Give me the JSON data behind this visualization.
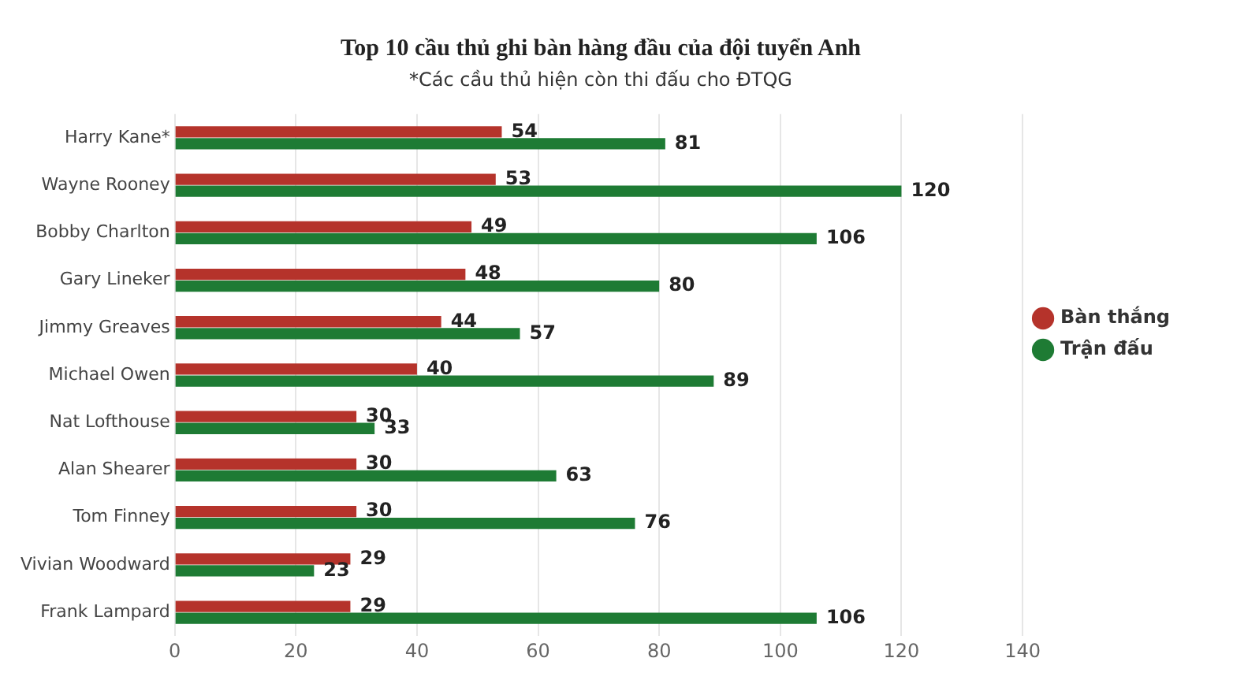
{
  "chart_data": {
    "type": "bar",
    "orientation": "horizontal",
    "title": "Top 10 cầu thủ ghi bàn hàng đầu của đội tuyển Anh",
    "subtitle": "*Các cầu thủ hiện còn thi đấu cho ĐTQG",
    "categories": [
      "Harry Kane*",
      "Wayne Rooney",
      "Bobby Charlton",
      "Gary Lineker",
      "Jimmy Greaves",
      "Michael Owen",
      "Nat Lofthouse",
      "Alan Shearer",
      "Tom Finney",
      "Vivian Woodward",
      "Frank Lampard"
    ],
    "series": [
      {
        "name": "Bàn thắng",
        "color": "#b5332b",
        "values": [
          54,
          53,
          49,
          48,
          44,
          40,
          30,
          30,
          30,
          29,
          29
        ]
      },
      {
        "name": "Trận đấu",
        "color": "#1e7b34",
        "values": [
          81,
          120,
          106,
          80,
          57,
          89,
          33,
          63,
          76,
          23,
          106
        ]
      }
    ],
    "xlim": [
      0,
      140
    ],
    "xticks": [
      0,
      20,
      40,
      60,
      80,
      100,
      120,
      140
    ],
    "grid": "x",
    "legend": "right",
    "data_labels": true
  }
}
